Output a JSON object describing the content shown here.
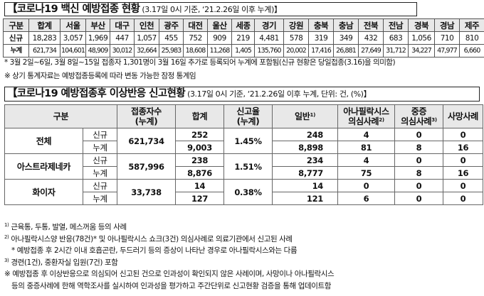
{
  "section1": {
    "title": "【코로나19 백신 예방접종 현황",
    "subtitle": "(3.17일 0시 기준, ‘21.2.26일 이후 누계)】",
    "header": [
      "구분",
      "합계",
      "서울",
      "부산",
      "대구",
      "인천",
      "광주",
      "대전",
      "울산",
      "세종",
      "경기",
      "강원",
      "충북",
      "충남",
      "전북",
      "전남",
      "경북",
      "경남",
      "제주"
    ],
    "rows": [
      {
        "label": "신규",
        "values": [
          "18,283",
          "3,057",
          "1,969",
          "447",
          "1,057",
          "455",
          "752",
          "909",
          "219",
          "4,481",
          "578",
          "319",
          "349",
          "432",
          "683",
          "1,056",
          "710",
          "810"
        ]
      },
      {
        "label": "누계",
        "values": [
          "621,734",
          "104,601",
          "48,909",
          "30,012",
          "32,664",
          "25,983",
          "18,608",
          "11,268",
          "1,405",
          "135,760",
          "20,002",
          "17,416",
          "26,881",
          "27,649",
          "31,712",
          "34,227",
          "47,977",
          "6,660"
        ]
      }
    ],
    "notes": [
      "* 3월 2일~6일, 3월 8일~15일 접종자 1,301명이 3월 16일 추가로 등록되어 누계에 포함됨(신규 현황은 당일접종(3.16)을 의미함)",
      "※ 상기 통계자료는 예방접종등록에 따라 변동 가능한 잠정 통계임"
    ]
  },
  "section2": {
    "title": "【코로나19 예방접종후 이상반응 신고현황",
    "subtitle": "(3.17일 0시 기준, ‘21.2.26일 이후 누계, 단위: 건, (%)】",
    "header": {
      "category": "구분",
      "vaccinated_l1": "접종자수",
      "vaccinated_l2": "(누계)",
      "total": "합계",
      "rate_l1": "신고율",
      "rate_l2": "(누계)",
      "general": "일반",
      "general_sup": "1)",
      "ana_l1": "아나필락시스",
      "ana_l2": "의심사례",
      "ana_sup": "2)",
      "severe_l1": "중증",
      "severe_l2": "의심사례",
      "severe_sup": "3)",
      "death": "사망사례"
    },
    "groups": [
      {
        "name": "전체",
        "vaccinated": "621,734",
        "rate": "1.45%",
        "rows": [
          {
            "type": "신규",
            "total": "252",
            "general": "248",
            "ana": "4",
            "severe": "0",
            "death": "0"
          },
          {
            "type": "누계",
            "total": "9,003",
            "general": "8,898",
            "ana": "81",
            "severe": "8",
            "death": "16"
          }
        ]
      },
      {
        "name": "아스트라제네카",
        "vaccinated": "587,996",
        "rate": "1.51%",
        "rows": [
          {
            "type": "신규",
            "total": "238",
            "general": "234",
            "ana": "4",
            "severe": "0",
            "death": "0"
          },
          {
            "type": "누계",
            "total": "8,876",
            "general": "8,777",
            "ana": "75",
            "severe": "8",
            "death": "16"
          }
        ]
      },
      {
        "name": "화이자",
        "vaccinated": "33,738",
        "rate": "0.38%",
        "rows": [
          {
            "type": "신규",
            "total": "14",
            "general": "14",
            "ana": "0",
            "severe": "0",
            "death": "0"
          },
          {
            "type": "누계",
            "total": "127",
            "general": "121",
            "ana": "6",
            "severe": "0",
            "death": "0"
          }
        ]
      }
    ],
    "footnotes": [
      {
        "mark": "1)",
        "text": "근육통, 두통, 발열, 메스꺼움 등의 사례"
      },
      {
        "mark": "2)",
        "text": "아나필락시스양 반응(78건)* 및 아나필락시스 쇼크(3건) 의심사례로 의료기관에서 신고된 사례"
      },
      {
        "mark": "",
        "text": "* 예방접종 후 2시간 이내 호흡곤란, 두드러기 등의 증상이 나타난 경우로 아나필락시스와는 다름"
      },
      {
        "mark": "3)",
        "text": "경련(1건), 중환자실 입원(7건) 포함"
      },
      {
        "mark": "",
        "text": "※ 예방접종 후 이상반응으로 의심되어 신고된 건으로 인과성이 확인되지 않은 사례이며, 사망이나 아나필락시스"
      },
      {
        "mark": "",
        "text": "등의 중증사례에 한해 역학조사를 실시하여 인과성을 평가하고 주간단위로 신고현황 검증을 통해 업데이트함"
      }
    ]
  }
}
